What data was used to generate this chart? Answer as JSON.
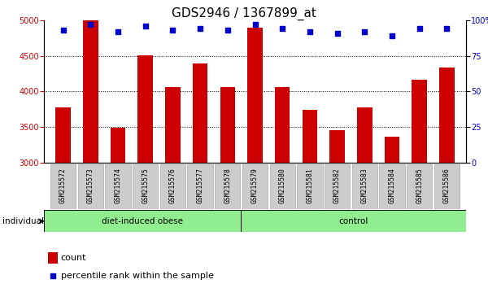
{
  "title": "GDS2946 / 1367899_at",
  "samples": [
    "GSM215572",
    "GSM215573",
    "GSM215574",
    "GSM215575",
    "GSM215576",
    "GSM215577",
    "GSM215578",
    "GSM215579",
    "GSM215580",
    "GSM215581",
    "GSM215582",
    "GSM215583",
    "GSM215584",
    "GSM215585",
    "GSM215586"
  ],
  "counts": [
    3780,
    5000,
    3490,
    4510,
    4060,
    4390,
    4060,
    4900,
    4060,
    3740,
    3460,
    3780,
    3360,
    4160,
    4330
  ],
  "percentile_ranks": [
    93,
    97,
    92,
    96,
    93,
    94,
    93,
    97,
    94,
    92,
    91,
    92,
    89,
    94,
    94
  ],
  "group_split": 7,
  "ymin": 3000,
  "ymax": 5000,
  "yticks": [
    3000,
    3500,
    4000,
    4500,
    5000
  ],
  "y2ticks": [
    0,
    25,
    50,
    75,
    100
  ],
  "bar_color": "#cc0000",
  "dot_color": "#0000cc",
  "green_color": "#90ee90",
  "grey_cell": "#cccccc",
  "title_fontsize": 11,
  "tick_fontsize": 7,
  "legend_fontsize": 8
}
